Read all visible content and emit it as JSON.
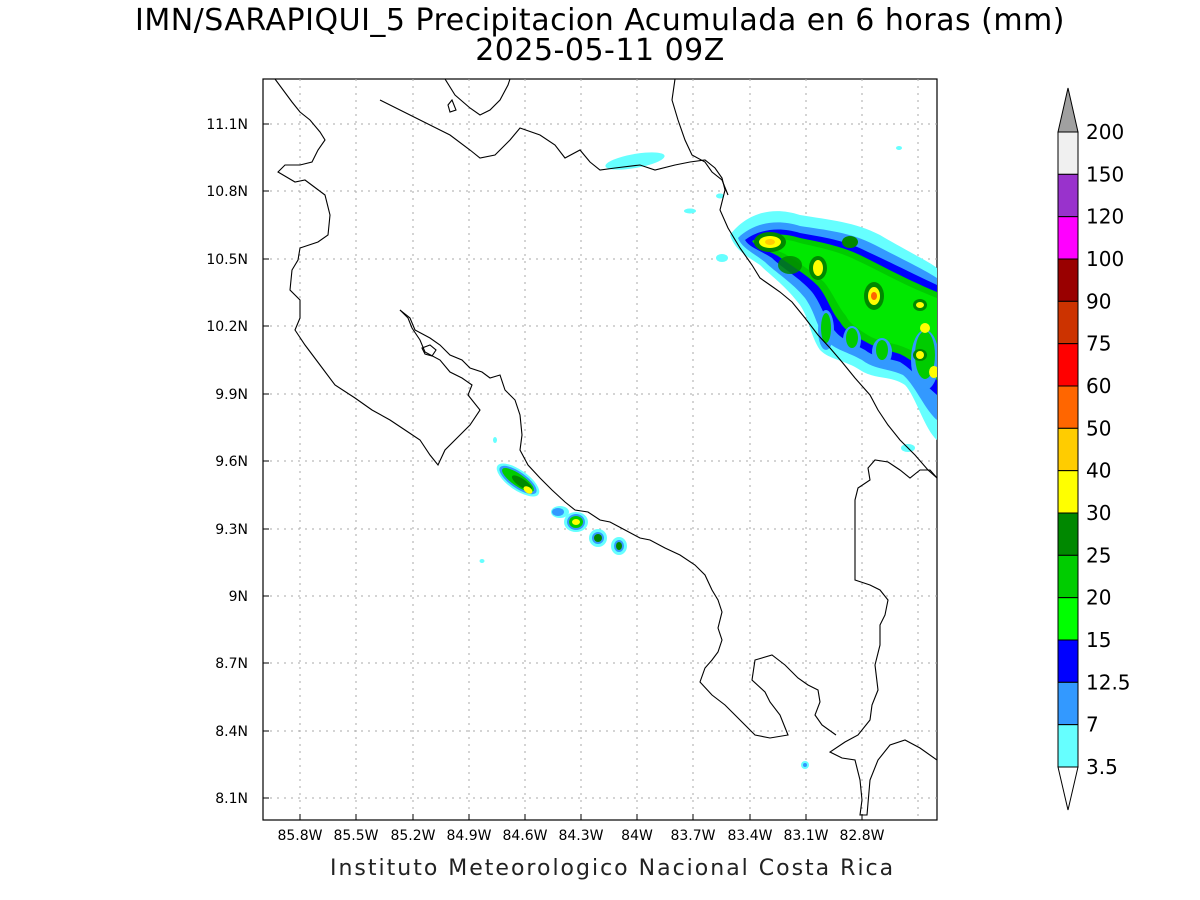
{
  "title_line1": "IMN/SARAPIQUI_5 Precipitacion Acumulada en 6 horas (mm)",
  "title_line2": "2025-05-11 09Z",
  "footer": "Instituto Meteorologico Nacional Costa Rica",
  "lat_ticks": [
    "11.1N",
    "10.8N",
    "10.5N",
    "10.2N",
    "9.9N",
    "9.6N",
    "9.3N",
    "9N",
    "8.7N",
    "8.4N",
    "8.1N"
  ],
  "lon_ticks": [
    "85.8W",
    "85.5W",
    "85.2W",
    "84.9W",
    "84.6W",
    "84.3W",
    "84W",
    "83.7W",
    "83.4W",
    "83.1W",
    "82.8W"
  ],
  "colorbar": {
    "labels": [
      "200",
      "150",
      "120",
      "100",
      "90",
      "75",
      "60",
      "50",
      "40",
      "30",
      "25",
      "20",
      "15",
      "12.5",
      "7",
      "3.5"
    ],
    "colors": [
      "#f0f0f0",
      "#9932cc",
      "#ff00ff",
      "#990000",
      "#cc3300",
      "#ff0000",
      "#ff6600",
      "#ffcc00",
      "#ffff00",
      "#008800",
      "#00cc00",
      "#00ff00",
      "#0000ff",
      "#3399ff",
      "#66ffff"
    ],
    "over_color": "#a0a0a0",
    "under_color": "#ffffff"
  }
}
